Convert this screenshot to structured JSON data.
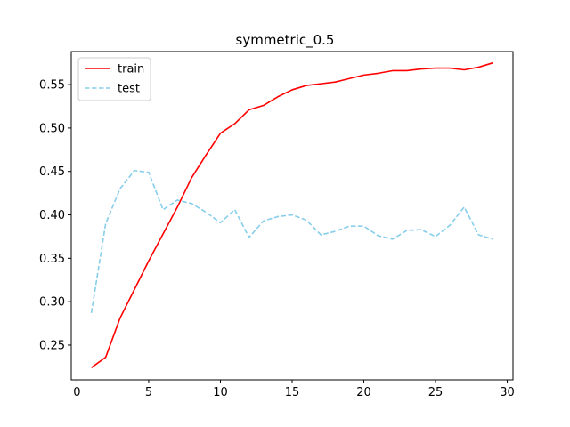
{
  "chart_data": {
    "type": "line",
    "title": "symmetric_0.5",
    "xlabel": "",
    "ylabel": "",
    "xlim": [
      -0.4,
      30.4
    ],
    "ylim": [
      0.21,
      0.588
    ],
    "xticks": [
      0,
      5,
      10,
      15,
      20,
      25,
      30
    ],
    "yticks": [
      0.25,
      0.3,
      0.35,
      0.4,
      0.45,
      0.5,
      0.55
    ],
    "ytick_labels": [
      "0.25",
      "0.30",
      "0.35",
      "0.40",
      "0.45",
      "0.50",
      "0.55"
    ],
    "grid": false,
    "legend": {
      "placement": "top-left"
    },
    "x": [
      1,
      2,
      3,
      4,
      5,
      6,
      7,
      8,
      9,
      10,
      11,
      12,
      13,
      14,
      15,
      16,
      17,
      18,
      19,
      20,
      21,
      22,
      23,
      24,
      25,
      26,
      27,
      28,
      29
    ],
    "series": [
      {
        "name": "train",
        "color": "#ff0000",
        "style": "solid",
        "values": [
          0.224,
          0.236,
          0.281,
          0.314,
          0.347,
          0.378,
          0.409,
          0.443,
          0.469,
          0.494,
          0.505,
          0.521,
          0.526,
          0.536,
          0.544,
          0.549,
          0.551,
          0.553,
          0.557,
          0.561,
          0.563,
          0.566,
          0.566,
          0.568,
          0.569,
          0.569,
          0.567,
          0.57,
          0.575
        ]
      },
      {
        "name": "test",
        "color": "#87ceeb",
        "style": "dashed",
        "values": [
          0.287,
          0.39,
          0.43,
          0.451,
          0.449,
          0.406,
          0.417,
          0.413,
          0.403,
          0.391,
          0.406,
          0.374,
          0.393,
          0.398,
          0.4,
          0.394,
          0.377,
          0.381,
          0.387,
          0.387,
          0.376,
          0.372,
          0.382,
          0.383,
          0.375,
          0.388,
          0.409,
          0.377,
          0.372
        ]
      }
    ]
  }
}
